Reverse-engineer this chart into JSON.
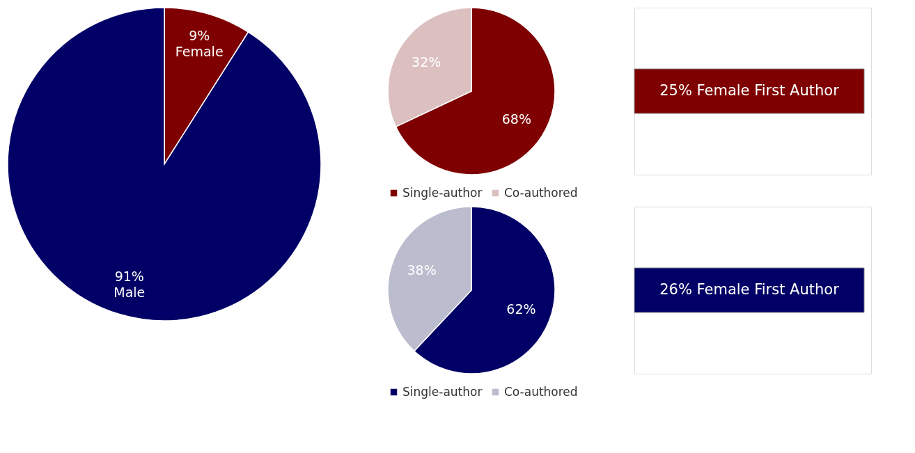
{
  "chart_data": [
    {
      "type": "pie",
      "categories": [
        "Female",
        "Male"
      ],
      "values": [
        9,
        91
      ],
      "colors": [
        "#7f0000",
        "#000066"
      ],
      "value_labels": [
        "9%",
        "91%"
      ]
    },
    {
      "type": "pie",
      "categories": [
        "Single-author",
        "Co-authored"
      ],
      "values": [
        68,
        32
      ],
      "colors": [
        "#7f0000",
        "#dcc0c0"
      ],
      "value_labels": [
        "68%",
        "32%"
      ],
      "legend": "bottom",
      "annotations": [
        "25% Female First Author"
      ]
    },
    {
      "type": "pie",
      "categories": [
        "Single-author",
        "Co-authored"
      ],
      "values": [
        62,
        38
      ],
      "colors": [
        "#000066",
        "#bcbccf"
      ],
      "value_labels": [
        "62%",
        "38%"
      ],
      "legend": "bottom",
      "annotations": [
        "26% Female First Author"
      ]
    }
  ]
}
